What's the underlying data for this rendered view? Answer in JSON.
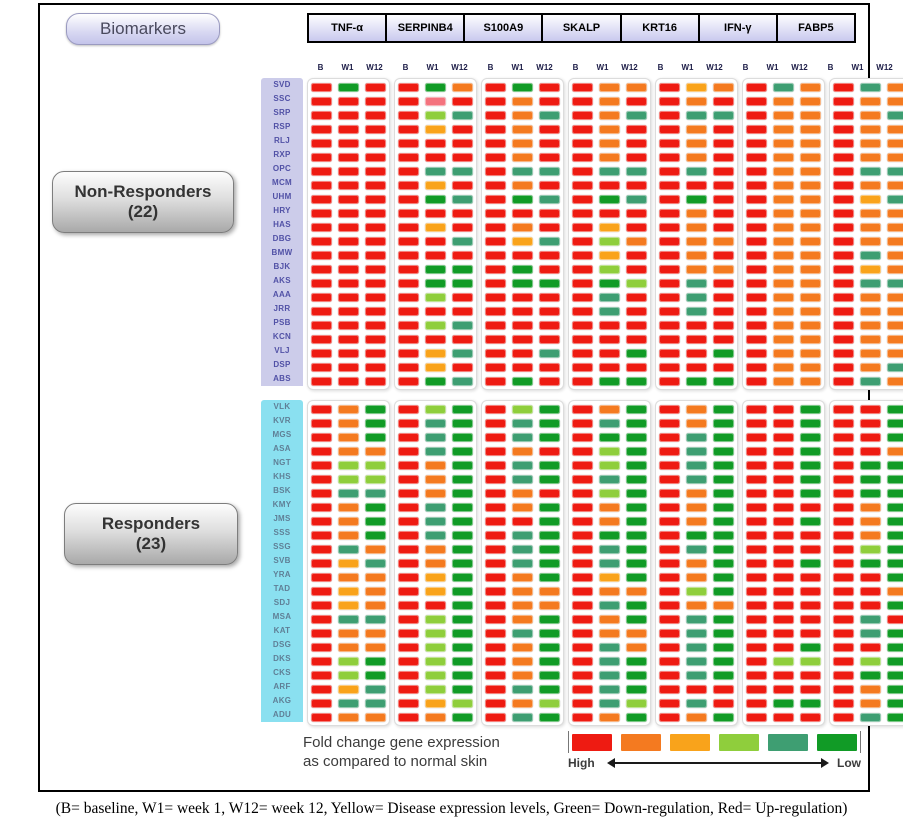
{
  "biomarkers_button_label": "Biomarkers",
  "caption": "(B= baseline, W1= week 1, W12= week 12, Yellow= Disease expression levels, Green= Down-regulation, Red= Up-regulation)",
  "chart_data": {
    "type": "heatmap",
    "title": "Biomarkers",
    "biomarkers": [
      "TNF-α",
      "SERPINB4",
      "S100A9",
      "SKALP",
      "KRT16",
      "IFN-γ",
      "FABP5"
    ],
    "timepoints": [
      "B",
      "W1",
      "W12"
    ],
    "palette": {
      "R": "#ee1b12",
      "O": "#f47a20",
      "A": "#f9a31b",
      "Y": "#8fce3c",
      "T": "#3e9e72",
      "G": "#119b26",
      "P": "#f4737e"
    },
    "scale_order_high_to_low": [
      "R",
      "O",
      "A",
      "Y",
      "T",
      "G"
    ],
    "legend": {
      "title_line1": "Fold change gene expression",
      "title_line2": "as compared to normal skin",
      "high_label": "High",
      "low_label": "Low",
      "colors": [
        "#ee1b12",
        "#f47a20",
        "#f9a31b",
        "#8fce3c",
        "#3e9e72",
        "#119b26"
      ]
    },
    "groups": [
      {
        "key": "non-responders",
        "label": "Non-Responders",
        "count_label": "(22)",
        "rows": [
          {
            "id": "SVD",
            "cells": "RGR RGO RGR ROO RAO RTO RTO"
          },
          {
            "id": "SSC",
            "cells": "RRR RPR ROR ROR ROR ROO ROO"
          },
          {
            "id": "SRP",
            "cells": "RRR RYT ROT ROT RTT ROO ROT"
          },
          {
            "id": "RSP",
            "cells": "RRR RAR ROR ROR ROR ROO ROO"
          },
          {
            "id": "RLJ",
            "cells": "RRR RRR ROR ROR ROR ROO ROO"
          },
          {
            "id": "RXP",
            "cells": "RRR RRR ROR ROR ROR ROO ROO"
          },
          {
            "id": "OPC",
            "cells": "RRR RTT RTT RTT RTR ROO RTT"
          },
          {
            "id": "MCM",
            "cells": "RRR RAR ROR RRR RRR ROO ROO"
          },
          {
            "id": "UHM",
            "cells": "RRR RGT RGT RGT RGR ROO RAT"
          },
          {
            "id": "HRY",
            "cells": "RRR RRR RRR RRR ROR ROO ROO"
          },
          {
            "id": "HAS",
            "cells": "RRR RAR ROR RAR ROR ROO ROO"
          },
          {
            "id": "DBG",
            "cells": "RRR RRT RAT RYO ROO ROO ROO"
          },
          {
            "id": "BMW",
            "cells": "RRR RRR RRR RAR ROR ROO RTO"
          },
          {
            "id": "BJK",
            "cells": "RRR RGG RGR RYR ROO ROO RAO"
          },
          {
            "id": "AKS",
            "cells": "RRR RGG RGG RGY RTR ROO RTT"
          },
          {
            "id": "AAA",
            "cells": "RRR RYR RRR RTR RTR ROO ROO"
          },
          {
            "id": "JRR",
            "cells": "RRR RRR RRR RTR RTR ROO ROO"
          },
          {
            "id": "PSB",
            "cells": "RRR RYT RRR RRR RRR ROO ROO"
          },
          {
            "id": "KCN",
            "cells": "RRR RRR RRR RRR RRR ROO ROO"
          },
          {
            "id": "VLJ",
            "cells": "RRR RAT RRT RRG RRG ROO ROO"
          },
          {
            "id": "DSP",
            "cells": "RRR RAR RRR RRR RRR ROO ROT"
          },
          {
            "id": "ABS",
            "cells": "RRR RGT RGR RGG RGG ROO RTO"
          }
        ]
      },
      {
        "key": "responders",
        "label": "Responders",
        "count_label": "(23)",
        "rows": [
          {
            "id": "VLK",
            "cells": "ROG RYG RYG ROG ROG RRG RRG"
          },
          {
            "id": "KVR",
            "cells": "ROG RTG RTG RTG ROG RRG RRG"
          },
          {
            "id": "MGS",
            "cells": "ROG RTG RTG RGG RTG RRG RRG"
          },
          {
            "id": "ASA",
            "cells": "ROO RTG ROR RYG RTG RRG RRO"
          },
          {
            "id": "NGT",
            "cells": "RYY ROG RTG RYG RTG RRG RGG"
          },
          {
            "id": "KHS",
            "cells": "RYY ROG RTG RTG RTG RRG RGG"
          },
          {
            "id": "BSK",
            "cells": "RTT ROG ROR RYG ROG RRG RGG"
          },
          {
            "id": "KMY",
            "cells": "ROG RTG ROG ROG ROG RRR ROG"
          },
          {
            "id": "JMS",
            "cells": "ROG RTG RRG ROG ROG RRG ROG"
          },
          {
            "id": "SSS",
            "cells": "ROG RTG RTG RGG RGG RRR ROG"
          },
          {
            "id": "SSG",
            "cells": "RTO ROG RTG RTG RTG RRR RYG"
          },
          {
            "id": "SVB",
            "cells": "RAT ROG RTG RTG ROG RRG RGG"
          },
          {
            "id": "YRA",
            "cells": "ROO RAG ROG RAG ROG RRR RRG"
          },
          {
            "id": "TAD",
            "cells": "RAO RAG ROO ROO RYG RRR RRO"
          },
          {
            "id": "SDJ",
            "cells": "RAO RRG ROO RTG ROO RRR RRG"
          },
          {
            "id": "MSA",
            "cells": "RTT RYG ROG ROG RTG RRR RTR"
          },
          {
            "id": "KAT",
            "cells": "ROO RYG RTG ROO RTG RRR RTG"
          },
          {
            "id": "DSG",
            "cells": "ROO RYG ROG RTO RTG RRG RRG"
          },
          {
            "id": "DKS",
            "cells": "RYG RYG ROG RTG RTG RYY RYG"
          },
          {
            "id": "CKS",
            "cells": "RYG RYG ROG RTG RTG RRR RGG"
          },
          {
            "id": "ARF",
            "cells": "RAT RYG RTG RTG RRR RRR ROG"
          },
          {
            "id": "AKG",
            "cells": "RTT RAY ROY RTY RTR RGG ROG"
          },
          {
            "id": "ADU",
            "cells": "ROO ROG RTG ROG ROG RRR RTG"
          }
        ]
      }
    ]
  }
}
